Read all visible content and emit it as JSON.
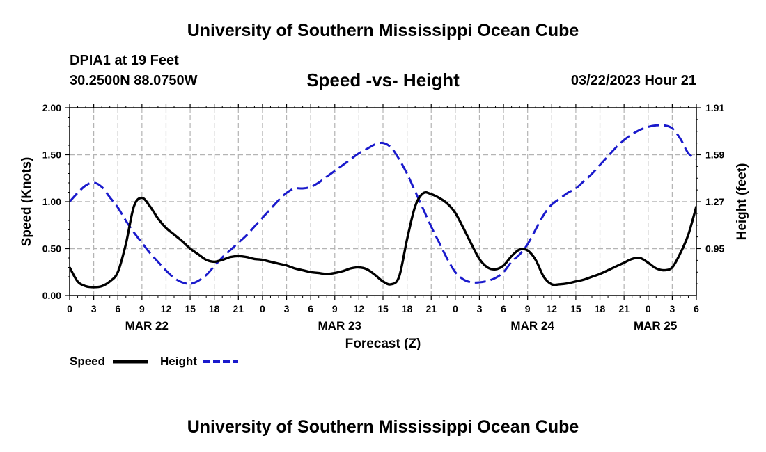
{
  "header": {
    "title": "University of Southern Mississippi Ocean Cube",
    "station": "DPIA1 at 19 Feet",
    "coordinates": "30.2500N  88.0750W",
    "subtitle": "Speed -vs- Height",
    "datetime": "03/22/2023 Hour 21"
  },
  "footer": {
    "title": "University of Southern Mississippi Ocean Cube"
  },
  "legend": {
    "speed_label": "Speed",
    "height_label": "Height"
  },
  "colors": {
    "speed": "#000000",
    "height": "#1a1acc",
    "grid": "#b4b4b4"
  },
  "chart_data": {
    "type": "line",
    "title": "Speed -vs- Height",
    "xlabel": "Forecast (Z)",
    "ylabel": "Speed (Knots)",
    "y2label": "Height (feet)",
    "x_range": [
      0,
      78
    ],
    "ylim": [
      0,
      2
    ],
    "y2lim": [
      0.63,
      1.91
    ],
    "x_tick_labels": [
      "0",
      "3",
      "6",
      "9",
      "12",
      "15",
      "18",
      "21",
      "0",
      "3",
      "6",
      "9",
      "12",
      "15",
      "18",
      "21",
      "0",
      "3",
      "6",
      "9",
      "12",
      "15",
      "18",
      "21",
      "0",
      "3",
      "6"
    ],
    "x_tick_values": [
      0,
      3,
      6,
      9,
      12,
      15,
      18,
      21,
      24,
      27,
      30,
      33,
      36,
      39,
      42,
      45,
      48,
      51,
      54,
      57,
      60,
      63,
      66,
      69,
      72,
      75,
      78
    ],
    "y_ticks": [
      "0.00",
      "0.50",
      "1.00",
      "1.50",
      "2.00"
    ],
    "y_tick_values": [
      0,
      0.5,
      1.0,
      1.5,
      2.0
    ],
    "y2_ticks": [
      "0.95",
      "1.27",
      "1.59",
      "1.91"
    ],
    "y2_tick_values": [
      0.95,
      1.27,
      1.59,
      1.91
    ],
    "date_labels": [
      {
        "label": "MAR 22",
        "hour": 9.6
      },
      {
        "label": "MAR 23",
        "hour": 33.6
      },
      {
        "label": "MAR 24",
        "hour": 57.6
      },
      {
        "label": "MAR 25",
        "hour": 72.9
      }
    ],
    "grid": true,
    "series": [
      {
        "name": "Speed",
        "axis": "left",
        "style": "solid",
        "x": [
          0,
          1,
          2,
          3,
          4,
          5,
          6,
          7,
          8,
          9,
          10,
          11,
          12,
          13,
          14,
          15,
          16,
          17,
          18,
          19,
          20,
          21,
          22,
          23,
          24,
          25,
          26,
          27,
          28,
          29,
          30,
          31,
          32,
          33,
          34,
          35,
          36,
          37,
          38,
          39,
          40,
          41,
          42,
          43,
          44,
          45,
          46,
          47,
          48,
          49,
          50,
          51,
          52,
          53,
          54,
          55,
          56,
          57,
          58,
          59,
          60,
          61,
          62,
          63,
          64,
          65,
          66,
          67,
          68,
          69,
          70,
          71,
          72,
          73,
          74,
          75,
          76,
          77,
          78
        ],
        "values": [
          0.3,
          0.15,
          0.1,
          0.09,
          0.1,
          0.15,
          0.25,
          0.55,
          0.95,
          1.04,
          0.95,
          0.82,
          0.72,
          0.65,
          0.58,
          0.5,
          0.44,
          0.38,
          0.36,
          0.38,
          0.41,
          0.42,
          0.41,
          0.39,
          0.38,
          0.36,
          0.34,
          0.32,
          0.29,
          0.27,
          0.25,
          0.24,
          0.23,
          0.24,
          0.26,
          0.29,
          0.3,
          0.28,
          0.22,
          0.15,
          0.12,
          0.2,
          0.6,
          0.95,
          1.09,
          1.08,
          1.04,
          0.98,
          0.88,
          0.72,
          0.55,
          0.39,
          0.3,
          0.28,
          0.32,
          0.42,
          0.49,
          0.48,
          0.38,
          0.2,
          0.12,
          0.12,
          0.13,
          0.15,
          0.17,
          0.2,
          0.23,
          0.27,
          0.31,
          0.35,
          0.39,
          0.4,
          0.35,
          0.29,
          0.27,
          0.3,
          0.45,
          0.65,
          0.95
        ]
      },
      {
        "name": "Height",
        "axis": "right",
        "style": "dashed",
        "x": [
          0,
          1,
          2,
          3,
          4,
          5,
          6,
          7,
          8,
          9,
          10,
          11,
          12,
          13,
          14,
          15,
          16,
          17,
          18,
          19,
          20,
          21,
          22,
          23,
          24,
          25,
          26,
          27,
          28,
          29,
          30,
          31,
          32,
          33,
          34,
          35,
          36,
          37,
          38,
          39,
          40,
          41,
          42,
          43,
          44,
          45,
          46,
          47,
          48,
          49,
          50,
          51,
          52,
          53,
          54,
          55,
          56,
          57,
          58,
          59,
          60,
          61,
          62,
          63,
          64,
          65,
          66,
          67,
          68,
          69,
          70,
          71,
          72,
          73,
          74,
          75,
          76,
          77,
          78
        ],
        "values": [
          1.27,
          1.33,
          1.38,
          1.4,
          1.37,
          1.3,
          1.23,
          1.14,
          1.06,
          0.99,
          0.92,
          0.86,
          0.8,
          0.75,
          0.72,
          0.71,
          0.73,
          0.77,
          0.83,
          0.89,
          0.94,
          0.99,
          1.04,
          1.1,
          1.16,
          1.22,
          1.28,
          1.33,
          1.36,
          1.36,
          1.37,
          1.4,
          1.44,
          1.48,
          1.52,
          1.56,
          1.6,
          1.63,
          1.66,
          1.67,
          1.64,
          1.56,
          1.46,
          1.34,
          1.22,
          1.1,
          0.99,
          0.88,
          0.79,
          0.74,
          0.72,
          0.72,
          0.73,
          0.75,
          0.79,
          0.86,
          0.91,
          0.98,
          1.08,
          1.18,
          1.25,
          1.29,
          1.33,
          1.36,
          1.41,
          1.46,
          1.52,
          1.58,
          1.64,
          1.69,
          1.73,
          1.76,
          1.78,
          1.79,
          1.79,
          1.77,
          1.7,
          1.6,
          1.56
        ]
      }
    ]
  }
}
